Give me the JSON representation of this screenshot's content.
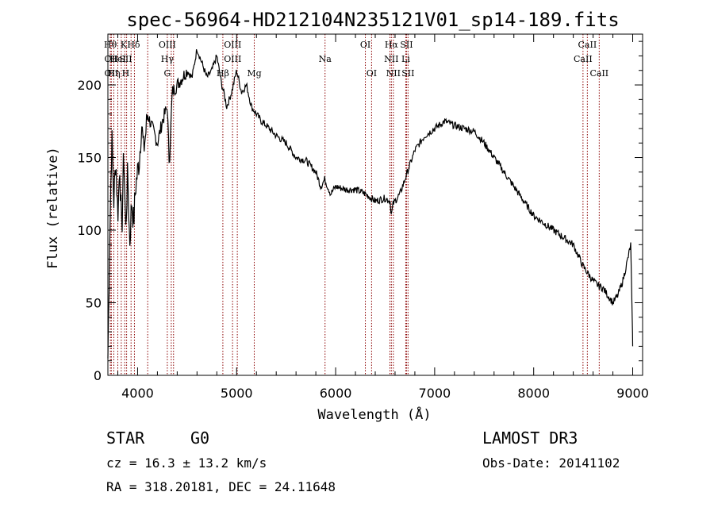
{
  "chart_data": {
    "type": "line",
    "title": "spec-56964-HD212104N235121V01_sp14-189.fits",
    "xlabel": "Wavelength (Å)",
    "ylabel": "Flux (relative)",
    "xlim": [
      3700,
      9100
    ],
    "ylim": [
      0,
      235
    ],
    "xticks": [
      4000,
      5000,
      6000,
      7000,
      8000,
      9000
    ],
    "yticks": [
      0,
      50,
      100,
      150,
      200
    ],
    "spectrum": {
      "x": [
        3700,
        3720,
        3740,
        3760,
        3780,
        3800,
        3820,
        3840,
        3860,
        3880,
        3900,
        3920,
        3940,
        3960,
        3980,
        4000,
        4020,
        4040,
        4060,
        4080,
        4100,
        4150,
        4200,
        4250,
        4300,
        4320,
        4350,
        4400,
        4450,
        4500,
        4550,
        4600,
        4650,
        4700,
        4750,
        4800,
        4850,
        4870,
        4900,
        4950,
        5000,
        5050,
        5100,
        5150,
        5200,
        5250,
        5300,
        5400,
        5500,
        5600,
        5700,
        5800,
        5850,
        5890,
        5950,
        6000,
        6100,
        6200,
        6300,
        6400,
        6500,
        6550,
        6563,
        6580,
        6650,
        6700,
        6750,
        6800,
        6900,
        7000,
        7100,
        7200,
        7300,
        7400,
        7500,
        7600,
        7700,
        7800,
        7900,
        8000,
        8100,
        8200,
        8300,
        8400,
        8500,
        8550,
        8600,
        8650,
        8700,
        8750,
        8800,
        8850,
        8900,
        8950,
        8980,
        9000
      ],
      "y": [
        12,
        100,
        165,
        120,
        150,
        110,
        145,
        95,
        155,
        100,
        140,
        90,
        120,
        105,
        130,
        140,
        150,
        175,
        155,
        165,
        180,
        170,
        160,
        175,
        185,
        145,
        195,
        200,
        205,
        210,
        205,
        225,
        215,
        205,
        210,
        220,
        200,
        195,
        185,
        195,
        210,
        195,
        200,
        185,
        180,
        175,
        172,
        165,
        160,
        150,
        148,
        140,
        130,
        135,
        125,
        130,
        128,
        128,
        125,
        120,
        122,
        120,
        110,
        118,
        125,
        135,
        145,
        155,
        165,
        170,
        175,
        172,
        170,
        168,
        160,
        150,
        140,
        130,
        120,
        110,
        105,
        100,
        95,
        90,
        75,
        70,
        65,
        62,
        60,
        55,
        50,
        55,
        65,
        80,
        90,
        20
      ]
    },
    "lines": [
      {
        "x": 3725,
        "row": 1,
        "label": "Hθ"
      },
      {
        "x": 3735,
        "row": 2,
        "label": "OII"
      },
      {
        "x": 3735,
        "row": 3,
        "label": "OII"
      },
      {
        "x": 3760,
        "row": 3,
        "label": "Hη"
      },
      {
        "x": 3800,
        "row": 2,
        "label": "HeI"
      },
      {
        "x": 3860,
        "row": 1,
        "label": "K"
      },
      {
        "x": 3880,
        "row": 2,
        "label": "SII"
      },
      {
        "x": 3880,
        "row": 3,
        "label": "H"
      },
      {
        "x": 3960,
        "row": 1,
        "label": "Hδ"
      },
      {
        "x": 4300,
        "row": 1,
        "label": "OIII"
      },
      {
        "x": 4300,
        "row": 2,
        "label": "Hγ"
      },
      {
        "x": 4300,
        "row": 3,
        "label": "G"
      },
      {
        "x": 4960,
        "row": 1,
        "label": "OIII"
      },
      {
        "x": 4960,
        "row": 2,
        "label": "OIII"
      },
      {
        "x": 4861,
        "row": 3,
        "label": "Hβ"
      },
      {
        "x": 5178,
        "row": 3,
        "label": "Mg"
      },
      {
        "x": 5893,
        "row": 2,
        "label": "Na"
      },
      {
        "x": 6300,
        "row": 1,
        "label": "OI"
      },
      {
        "x": 6363,
        "row": 3,
        "label": "OI"
      },
      {
        "x": 6563,
        "row": 1,
        "label": "Hα"
      },
      {
        "x": 6563,
        "row": 2,
        "label": "NII"
      },
      {
        "x": 6583,
        "row": 3,
        "label": "NII"
      },
      {
        "x": 6716,
        "row": 1,
        "label": "SII"
      },
      {
        "x": 6708,
        "row": 2,
        "label": "Li"
      },
      {
        "x": 6731,
        "row": 3,
        "label": "SII"
      },
      {
        "x": 8542,
        "row": 1,
        "label": "CaII"
      },
      {
        "x": 8498,
        "row": 2,
        "label": "CaII"
      },
      {
        "x": 8662,
        "row": 3,
        "label": "CaII"
      }
    ],
    "line_x": [
      3725,
      3735,
      3760,
      3800,
      3835,
      3870,
      3889,
      3934,
      3968,
      4102,
      4300,
      4340,
      4363,
      4861,
      4959,
      5007,
      5178,
      5893,
      6300,
      6363,
      6548,
      6563,
      6583,
      6708,
      6716,
      6731,
      8498,
      8542,
      8662
    ]
  },
  "info": {
    "class": "STAR",
    "subclass": "G0",
    "survey": "LAMOST DR3",
    "cz": "cz = 16.3 ± 13.2 km/s",
    "obsdate": "Obs-Date: 20141102",
    "coords": "RA = 318.20181, DEC =  24.11648"
  }
}
